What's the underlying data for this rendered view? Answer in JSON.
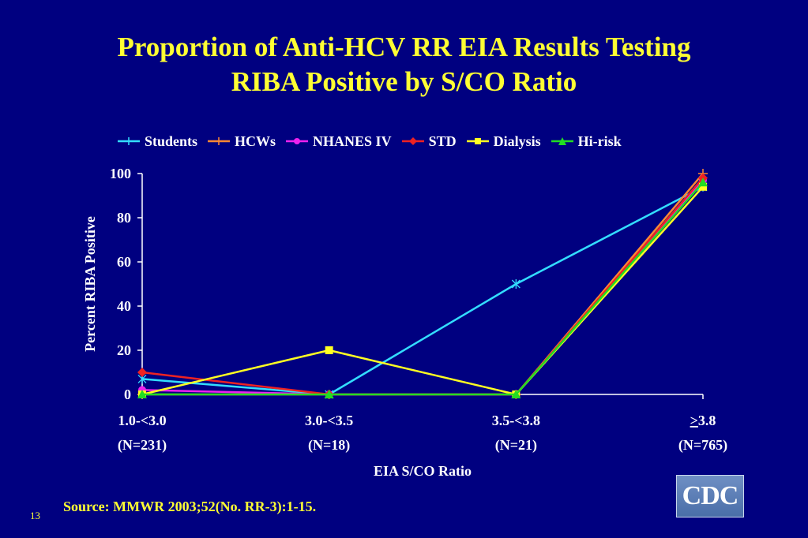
{
  "slide": {
    "title_line1": "Proportion of Anti-HCV RR EIA Results Testing",
    "title_line2": "RIBA Positive by S/CO Ratio",
    "source": "Source: MMWR 2003;52(No. RR-3):1-15.",
    "slide_number": "13",
    "logo_text": "CDC"
  },
  "colors": {
    "background": "#000080",
    "title": "#FFFF33",
    "text": "#FFFFFF"
  },
  "chart_data": {
    "type": "line",
    "xlabel": "EIA S/CO Ratio",
    "ylabel": "Percent RIBA Positive",
    "categories": [
      "1.0-<3.0",
      "3.0-<3.5",
      "3.5-<3.8",
      ">3.8"
    ],
    "category_counts": [
      "(N=231)",
      "(N=18)",
      "(N=21)",
      "(N=765)"
    ],
    "ylim": [
      0,
      100
    ],
    "yticks": [
      "0",
      "20",
      "40",
      "60",
      "80",
      "100"
    ],
    "legend_position": "top",
    "grid": false,
    "series": [
      {
        "name": "Students",
        "color": "#33DDFF",
        "marker": "star",
        "values": [
          7,
          0,
          50,
          94
        ]
      },
      {
        "name": "HCWs",
        "color": "#FF8833",
        "marker": "plus",
        "values": [
          0,
          0,
          0,
          100
        ]
      },
      {
        "name": "NHANES IV",
        "color": "#EE22EE",
        "marker": "circle",
        "values": [
          2,
          0,
          0,
          97
        ]
      },
      {
        "name": "STD",
        "color": "#EE2222",
        "marker": "diamond",
        "values": [
          10,
          0,
          0,
          98
        ]
      },
      {
        "name": "Dialysis",
        "color": "#FFFF22",
        "marker": "square",
        "values": [
          0,
          20,
          0,
          94
        ]
      },
      {
        "name": "Hi-risk",
        "color": "#22DD22",
        "marker": "triangle",
        "values": [
          0,
          0,
          0,
          96
        ]
      }
    ]
  }
}
